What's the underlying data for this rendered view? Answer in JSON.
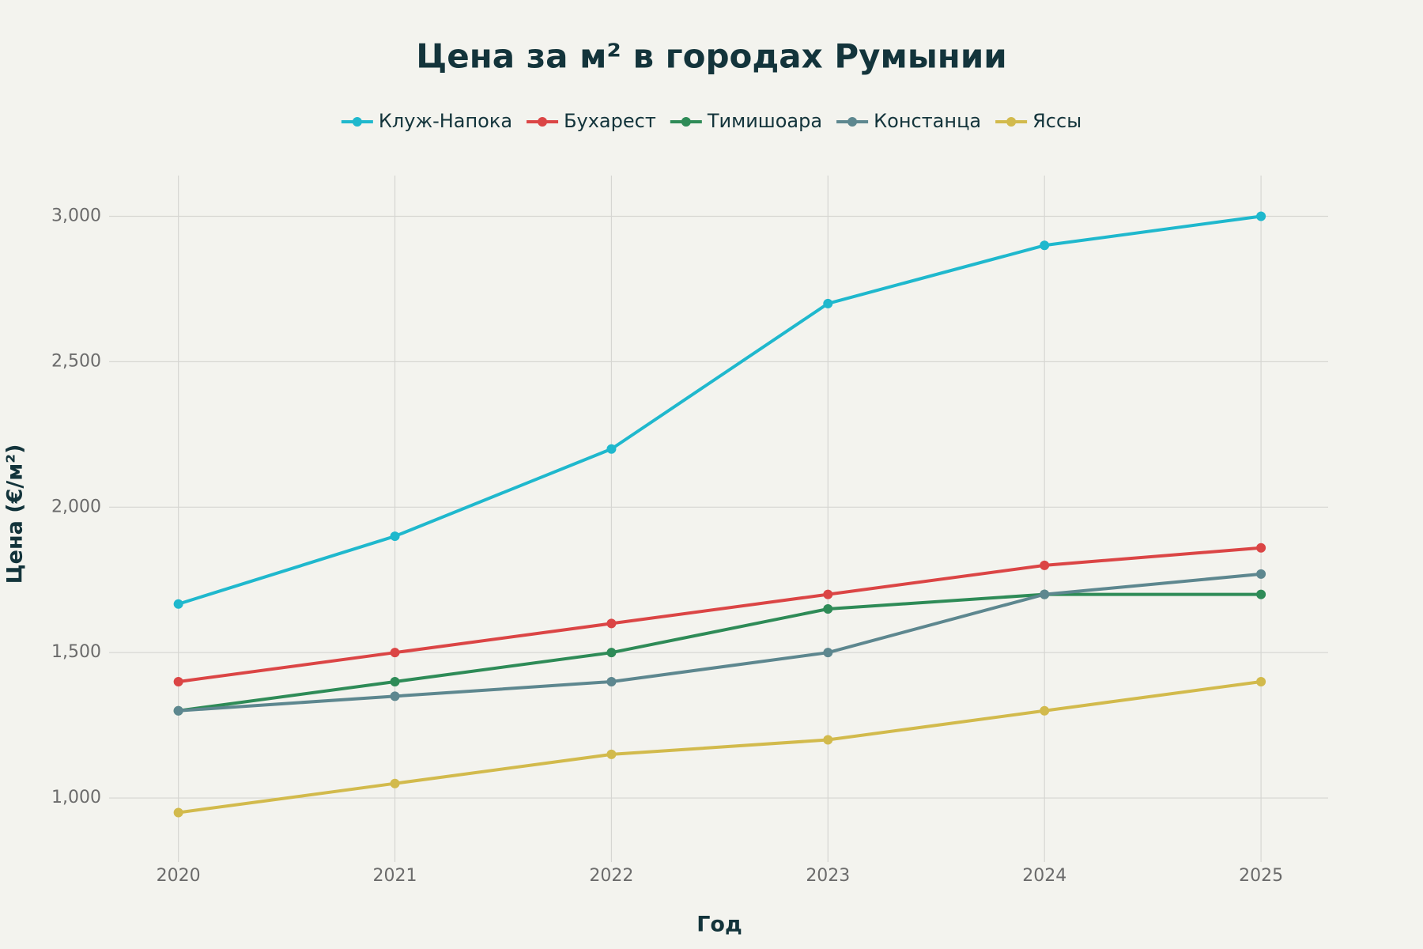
{
  "chart_data": {
    "type": "line",
    "title": "Цена за м² в городах Румынии",
    "x_label": "Год",
    "y_label": "Цена (€/м²)",
    "x": [
      2020,
      2021,
      2022,
      2023,
      2024,
      2025
    ],
    "xlim": [
      2019.68,
      2025.31
    ],
    "xticks": [
      2020,
      2021,
      2022,
      2023,
      2024,
      2025
    ],
    "ylim": [
      780,
      3140
    ],
    "yticks": [
      {
        "value": 1000,
        "label": "1,000"
      },
      {
        "value": 1500,
        "label": "1,500"
      },
      {
        "value": 2000,
        "label": "2,000"
      },
      {
        "value": 2500,
        "label": "2,500"
      },
      {
        "value": 3000,
        "label": "3,000"
      }
    ],
    "grid": true,
    "legend": "top",
    "series": [
      {
        "name": "Клуж-Напока",
        "color": "#1fb8cd",
        "values": [
          1667,
          1900,
          2200,
          2700,
          2900,
          3000
        ]
      },
      {
        "name": "Бухарест",
        "color": "#db4545",
        "values": [
          1400,
          1500,
          1600,
          1700,
          1800,
          1860
        ]
      },
      {
        "name": "Тимишоара",
        "color": "#2e8b57",
        "values": [
          1300,
          1400,
          1500,
          1650,
          1700,
          1700
        ]
      },
      {
        "name": "Констанца",
        "color": "#5d878f",
        "values": [
          1300,
          1350,
          1400,
          1500,
          1700,
          1770
        ]
      },
      {
        "name": "Яссы",
        "color": "#d2ba4c",
        "values": [
          950,
          1050,
          1150,
          1200,
          1300,
          1400
        ]
      }
    ]
  }
}
